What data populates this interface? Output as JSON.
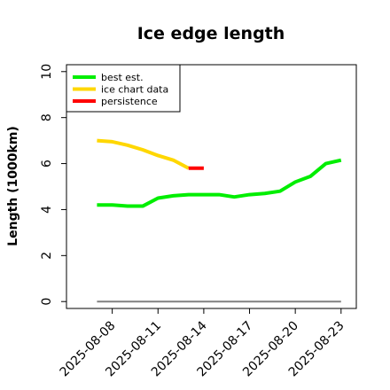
{
  "chart_data": {
    "type": "line",
    "title": "Ice edge length",
    "xlabel": "",
    "ylabel": "Length (1000km)",
    "ylim": [
      -0.3,
      10.3
    ],
    "xlim": [
      "2025-08-05",
      "2025-08-24"
    ],
    "yticks": [
      0,
      2,
      4,
      6,
      8,
      10
    ],
    "xticks": [
      "2025-08-08",
      "2025-08-11",
      "2025-08-14",
      "2025-08-17",
      "2025-08-20",
      "2025-08-23"
    ],
    "grid": false,
    "legend_position": "top-left",
    "series": [
      {
        "name": "best est.",
        "color": "#00ee00",
        "x": [
          "2025-08-07",
          "2025-08-08",
          "2025-08-09",
          "2025-08-10",
          "2025-08-11",
          "2025-08-12",
          "2025-08-13",
          "2025-08-14",
          "2025-08-15",
          "2025-08-16",
          "2025-08-17",
          "2025-08-18",
          "2025-08-19",
          "2025-08-20",
          "2025-08-21",
          "2025-08-22",
          "2025-08-23"
        ],
        "y": [
          4.2,
          4.2,
          4.15,
          4.15,
          4.5,
          4.6,
          4.65,
          4.65,
          4.65,
          4.55,
          4.65,
          4.7,
          4.8,
          5.2,
          5.45,
          6.0,
          6.15
        ]
      },
      {
        "name": "ice chart data",
        "color": "#ffd700",
        "x": [
          "2025-08-07",
          "2025-08-08",
          "2025-08-09",
          "2025-08-10",
          "2025-08-11",
          "2025-08-12",
          "2025-08-13"
        ],
        "y": [
          7.0,
          6.95,
          6.8,
          6.6,
          6.35,
          6.15,
          5.8
        ]
      },
      {
        "name": "persistence",
        "color": "#ff0000",
        "x": [
          "2025-08-13",
          "2025-08-14"
        ],
        "y": [
          5.8,
          5.8
        ]
      }
    ],
    "reference_line": {
      "color": "#808080",
      "x": [
        "2025-08-07",
        "2025-08-23"
      ],
      "y": [
        0,
        0
      ]
    }
  }
}
